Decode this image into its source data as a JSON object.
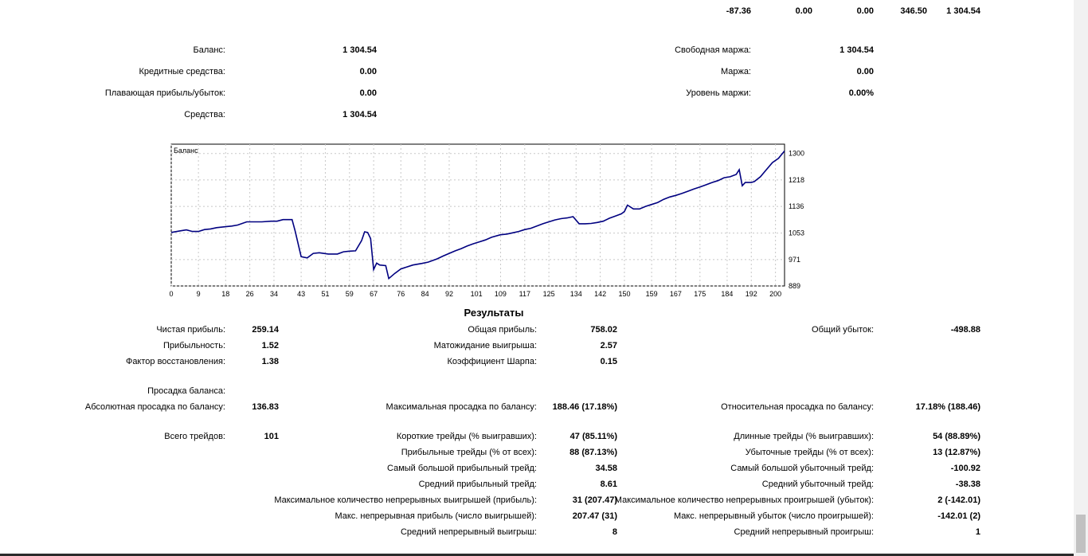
{
  "top_row": [
    "-87.36",
    "0.00",
    "0.00",
    "346.50",
    "1 304.54"
  ],
  "summary": {
    "balance_label": "Баланс:",
    "balance_value": "1 304.54",
    "credit_label": "Кредитные средства:",
    "credit_value": "0.00",
    "floating_label": "Плавающая прибыль/убыток:",
    "floating_value": "0.00",
    "equity_label": "Средства:",
    "equity_value": "1 304.54",
    "free_margin_label": "Свободная маржа:",
    "free_margin_value": "1 304.54",
    "margin_label": "Маржа:",
    "margin_value": "0.00",
    "margin_level_label": "Уровень маржи:",
    "margin_level_value": "0.00%"
  },
  "chart_data": {
    "type": "line",
    "title": "Баланс",
    "x_ticks": [
      0,
      9,
      18,
      26,
      34,
      43,
      51,
      59,
      67,
      76,
      84,
      92,
      101,
      109,
      117,
      125,
      134,
      142,
      150,
      159,
      167,
      175,
      184,
      192,
      200
    ],
    "y_ticks": [
      889,
      971,
      1053,
      1136,
      1218,
      1300
    ],
    "xlim": [
      0,
      203
    ],
    "ylim": [
      889,
      1329
    ],
    "grid": true,
    "series": [
      {
        "color": "#000080",
        "x": [
          0,
          3,
          5,
          7,
          9,
          11,
          13,
          15,
          18,
          20,
          22,
          25,
          28,
          30,
          33,
          35,
          37,
          40,
          41,
          43,
          45,
          47,
          49,
          52,
          55,
          57,
          59,
          61,
          63,
          64,
          65,
          66,
          67,
          68,
          69,
          71,
          72,
          74,
          76,
          78,
          80,
          83,
          85,
          88,
          90,
          92,
          94,
          96,
          98,
          100,
          102,
          104,
          106,
          109,
          111,
          113,
          115,
          117,
          119,
          121,
          123,
          125,
          127,
          129,
          130,
          131,
          133,
          135,
          137,
          139,
          141,
          143,
          145,
          147,
          149,
          150,
          151,
          153,
          155,
          157,
          159,
          161,
          163,
          165,
          167,
          169,
          171,
          173,
          175,
          177,
          179,
          181,
          183,
          185,
          187,
          188,
          189,
          190,
          192,
          193,
          195,
          197,
          199,
          201,
          203
        ],
        "y": [
          1055,
          1060,
          1063,
          1058,
          1058,
          1064,
          1066,
          1070,
          1073,
          1075,
          1078,
          1088,
          1088,
          1088,
          1090,
          1090,
          1095,
          1095,
          1060,
          980,
          976,
          990,
          992,
          988,
          988,
          995,
          997,
          998,
          1030,
          1057,
          1055,
          1036,
          940,
          960,
          954,
          952,
          912,
          928,
          942,
          948,
          954,
          959,
          963,
          973,
          982,
          990,
          998,
          1005,
          1013,
          1020,
          1026,
          1032,
          1040,
          1048,
          1050,
          1054,
          1058,
          1064,
          1068,
          1075,
          1082,
          1088,
          1094,
          1098,
          1099,
          1100,
          1104,
          1082,
          1082,
          1083,
          1086,
          1090,
          1099,
          1106,
          1113,
          1120,
          1140,
          1128,
          1128,
          1136,
          1142,
          1148,
          1158,
          1165,
          1170,
          1176,
          1183,
          1190,
          1196,
          1203,
          1210,
          1216,
          1225,
          1228,
          1235,
          1250,
          1200,
          1210,
          1210,
          1213,
          1228,
          1250,
          1272,
          1285,
          1308
        ]
      }
    ]
  },
  "results": {
    "title": "Результаты",
    "net_profit_label": "Чистая прибыль:",
    "net_profit_value": "259.14",
    "gross_profit_label": "Общая прибыль:",
    "gross_profit_value": "758.02",
    "gross_loss_label": "Общий убыток:",
    "gross_loss_value": "-498.88",
    "profitability_label": "Прибыльность:",
    "profitability_value": "1.52",
    "expected_payoff_label": "Матожидание выигрыша:",
    "expected_payoff_value": "2.57",
    "recovery_label": "Фактор восстановления:",
    "recovery_value": "1.38",
    "sharpe_label": "Коэффициент Шарпа:",
    "sharpe_value": "0.15",
    "drawdown_header": "Просадка баланса:",
    "abs_dd_label": "Абсолютная просадка по балансу:",
    "abs_dd_value": "136.83",
    "max_dd_label": "Максимальная просадка по балансу:",
    "max_dd_value": "188.46 (17.18%)",
    "rel_dd_label": "Относительная просадка по балансу:",
    "rel_dd_value": "17.18% (188.46)",
    "total_trades_label": "Всего трейдов:",
    "total_trades_value": "101",
    "short_label": "Короткие трейды (% выигравших):",
    "short_value": "47 (85.11%)",
    "long_label": "Длинные трейды (% выигравших):",
    "long_value": "54 (88.89%)",
    "profit_trades_label": "Прибыльные трейды (% от всех):",
    "profit_trades_value": "88 (87.13%)",
    "loss_trades_label": "Убыточные трейды (% от всех):",
    "loss_trades_value": "13 (12.87%)",
    "largest_profit_label": "Самый большой прибыльный трейд:",
    "largest_profit_value": "34.58",
    "largest_loss_label": "Самый большой убыточный трейд:",
    "largest_loss_value": "-100.92",
    "avg_profit_label": "Средний прибыльный трейд:",
    "avg_profit_value": "8.61",
    "avg_loss_label": "Средний убыточный трейд:",
    "avg_loss_value": "-38.38",
    "max_consec_wins_label": "Максимальное количество непрерывных выигрышей (прибыль):",
    "max_consec_wins_value": "31 (207.47)",
    "max_consec_losses_label": "Максимальное количество непрерывных проигрышей (убыток):",
    "max_consec_losses_value": "2 (-142.01)",
    "max_consec_profit_label": "Макс. непрерывная прибыль (число выигрышей):",
    "max_consec_profit_value": "207.47 (31)",
    "max_consec_loss_label": "Макс. непрерывный убыток (число проигрышей):",
    "max_consec_loss_value": "-142.01 (2)",
    "avg_consec_wins_label": "Средний непрерывный выигрыш:",
    "avg_consec_wins_value": "8",
    "avg_consec_losses_label": "Средний непрерывный проигрыш:",
    "avg_consec_losses_value": "1"
  }
}
